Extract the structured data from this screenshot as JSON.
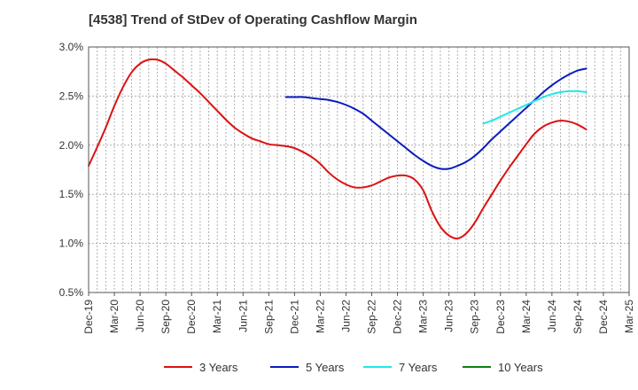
{
  "chart_data": {
    "type": "line",
    "title": "[4538]  Trend of StDev of Operating Cashflow Margin",
    "x_tick_labels": [
      "Dec-19",
      "Mar-20",
      "Jun-20",
      "Sep-20",
      "Dec-20",
      "Mar-21",
      "Jun-21",
      "Sep-21",
      "Dec-21",
      "Mar-22",
      "Jun-22",
      "Sep-22",
      "Dec-22",
      "Mar-23",
      "Jun-23",
      "Sep-23",
      "Dec-23",
      "Mar-24",
      "Jun-24",
      "Sep-24",
      "Dec-24",
      "Mar-25"
    ],
    "x_period_months": 63,
    "y_tick_labels": [
      "0.5%",
      "1.0%",
      "1.5%",
      "2.0%",
      "2.5%",
      "3.0%"
    ],
    "ylim": [
      0.5,
      3.0
    ],
    "grid": true,
    "legend_position": "bottom",
    "series": [
      {
        "name": "3 Years",
        "color": "#dd1111",
        "points": [
          [
            "Dec-19",
            1.79
          ],
          [
            "Jan-20",
            1.98
          ],
          [
            "Feb-20",
            2.18
          ],
          [
            "Mar-20",
            2.4
          ],
          [
            "Apr-20",
            2.59
          ],
          [
            "May-20",
            2.74
          ],
          [
            "Jun-20",
            2.83
          ],
          [
            "Jul-20",
            2.87
          ],
          [
            "Aug-20",
            2.87
          ],
          [
            "Sep-20",
            2.83
          ],
          [
            "Oct-20",
            2.76
          ],
          [
            "Nov-20",
            2.69
          ],
          [
            "Dec-20",
            2.61
          ],
          [
            "Jan-21",
            2.53
          ],
          [
            "Feb-21",
            2.44
          ],
          [
            "Mar-21",
            2.35
          ],
          [
            "Apr-21",
            2.26
          ],
          [
            "May-21",
            2.18
          ],
          [
            "Jun-21",
            2.12
          ],
          [
            "Jul-21",
            2.07
          ],
          [
            "Aug-21",
            2.04
          ],
          [
            "Sep-21",
            2.01
          ],
          [
            "Oct-21",
            2.0
          ],
          [
            "Nov-21",
            1.99
          ],
          [
            "Dec-21",
            1.97
          ],
          [
            "Jan-22",
            1.93
          ],
          [
            "Feb-22",
            1.88
          ],
          [
            "Mar-22",
            1.81
          ],
          [
            "Apr-22",
            1.72
          ],
          [
            "May-22",
            1.65
          ],
          [
            "Jun-22",
            1.6
          ],
          [
            "Jul-22",
            1.57
          ],
          [
            "Aug-22",
            1.57
          ],
          [
            "Sep-22",
            1.59
          ],
          [
            "Oct-22",
            1.63
          ],
          [
            "Nov-22",
            1.67
          ],
          [
            "Dec-22",
            1.69
          ],
          [
            "Jan-23",
            1.69
          ],
          [
            "Feb-23",
            1.65
          ],
          [
            "Mar-23",
            1.54
          ],
          [
            "Apr-23",
            1.33
          ],
          [
            "May-23",
            1.17
          ],
          [
            "Jun-23",
            1.08
          ],
          [
            "Jul-23",
            1.05
          ],
          [
            "Aug-23",
            1.1
          ],
          [
            "Sep-23",
            1.21
          ],
          [
            "Oct-23",
            1.36
          ],
          [
            "Nov-23",
            1.5
          ],
          [
            "Dec-23",
            1.64
          ],
          [
            "Jan-24",
            1.77
          ],
          [
            "Feb-24",
            1.89
          ],
          [
            "Mar-24",
            2.01
          ],
          [
            "Apr-24",
            2.12
          ],
          [
            "May-24",
            2.19
          ],
          [
            "Jun-24",
            2.23
          ],
          [
            "Jul-24",
            2.25
          ],
          [
            "Aug-24",
            2.24
          ],
          [
            "Sep-24",
            2.21
          ],
          [
            "Oct-24",
            2.16
          ]
        ]
      },
      {
        "name": "5 Years",
        "color": "#0a1bbf",
        "points": [
          [
            "Nov-21",
            2.49
          ],
          [
            "Dec-21",
            2.49
          ],
          [
            "Jan-22",
            2.49
          ],
          [
            "Feb-22",
            2.48
          ],
          [
            "Mar-22",
            2.47
          ],
          [
            "Apr-22",
            2.46
          ],
          [
            "May-22",
            2.44
          ],
          [
            "Jun-22",
            2.41
          ],
          [
            "Jul-22",
            2.37
          ],
          [
            "Aug-22",
            2.32
          ],
          [
            "Sep-22",
            2.25
          ],
          [
            "Oct-22",
            2.18
          ],
          [
            "Nov-22",
            2.11
          ],
          [
            "Dec-22",
            2.04
          ],
          [
            "Jan-23",
            1.97
          ],
          [
            "Feb-23",
            1.9
          ],
          [
            "Mar-23",
            1.84
          ],
          [
            "Apr-23",
            1.79
          ],
          [
            "May-23",
            1.76
          ],
          [
            "Jun-23",
            1.76
          ],
          [
            "Jul-23",
            1.79
          ],
          [
            "Aug-23",
            1.83
          ],
          [
            "Sep-23",
            1.89
          ],
          [
            "Oct-23",
            1.97
          ],
          [
            "Nov-23",
            2.06
          ],
          [
            "Dec-23",
            2.14
          ],
          [
            "Jan-24",
            2.22
          ],
          [
            "Feb-24",
            2.3
          ],
          [
            "Mar-24",
            2.38
          ],
          [
            "Apr-24",
            2.46
          ],
          [
            "May-24",
            2.54
          ],
          [
            "Jun-24",
            2.61
          ],
          [
            "Jul-24",
            2.67
          ],
          [
            "Aug-24",
            2.72
          ],
          [
            "Sep-24",
            2.76
          ],
          [
            "Oct-24",
            2.78
          ]
        ]
      },
      {
        "name": "7 Years",
        "color": "#22e8e8",
        "points": [
          [
            "Oct-23",
            2.22
          ],
          [
            "Nov-23",
            2.25
          ],
          [
            "Dec-23",
            2.29
          ],
          [
            "Jan-24",
            2.33
          ],
          [
            "Feb-24",
            2.37
          ],
          [
            "Mar-24",
            2.41
          ],
          [
            "Apr-24",
            2.45
          ],
          [
            "May-24",
            2.49
          ],
          [
            "Jun-24",
            2.52
          ],
          [
            "Jul-24",
            2.54
          ],
          [
            "Aug-24",
            2.55
          ],
          [
            "Sep-24",
            2.55
          ],
          [
            "Oct-24",
            2.54
          ]
        ]
      },
      {
        "name": "10 Years",
        "color": "#138013",
        "points": []
      }
    ]
  }
}
